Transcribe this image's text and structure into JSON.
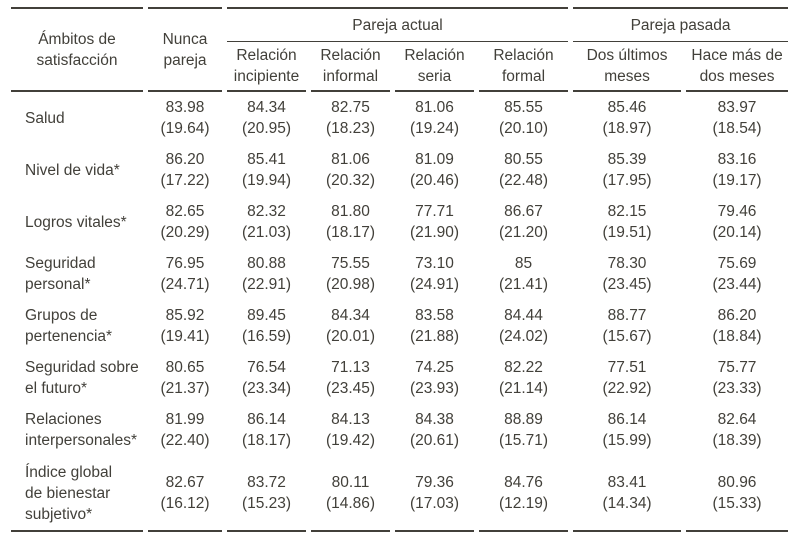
{
  "meta": {
    "text_color": "#42403a",
    "rule_color": "#42403a",
    "background_color": "#ffffff"
  },
  "header": {
    "row_label_col": "Ámbitos de\nsatisfacción",
    "never_col": "Nunca\npareja",
    "groups": [
      {
        "label": "Pareja actual",
        "columns": [
          "Relación\nincipiente",
          "Relación\ninformal",
          "Relación\nseria",
          "Relación\nformal"
        ]
      },
      {
        "label": "Pareja pasada",
        "columns": [
          "Dos últimos\nmeses",
          "Hace más de\ndos meses"
        ]
      }
    ]
  },
  "rows": [
    {
      "label": "Salud",
      "cells": [
        [
          "83.98",
          "(19.64)"
        ],
        [
          "84.34",
          "(20.95)"
        ],
        [
          "82.75",
          "(18.23)"
        ],
        [
          "81.06",
          "(19.24)"
        ],
        [
          "85.55",
          "(20.10)"
        ],
        [
          "85.46",
          "(18.97)"
        ],
        [
          "83.97",
          "(18.54)"
        ]
      ]
    },
    {
      "label": "Nivel de vida*",
      "cells": [
        [
          "86.20",
          "(17.22)"
        ],
        [
          "85.41",
          "(19.94)"
        ],
        [
          "81.06",
          "(20.32)"
        ],
        [
          "81.09",
          "(20.46)"
        ],
        [
          "80.55",
          "(22.48)"
        ],
        [
          "85.39",
          "(17.95)"
        ],
        [
          "83.16",
          "(19.17)"
        ]
      ]
    },
    {
      "label": "Logros vitales*",
      "cells": [
        [
          "82.65",
          "(20.29)"
        ],
        [
          "82.32",
          "(21.03)"
        ],
        [
          "81.80",
          "(18.17)"
        ],
        [
          "77.71",
          "(21.90)"
        ],
        [
          "86.67",
          "(21.20)"
        ],
        [
          "82.15",
          "(19.51)"
        ],
        [
          "79.46",
          "(20.14)"
        ]
      ]
    },
    {
      "label": "Seguridad\npersonal*",
      "cells": [
        [
          "76.95",
          "(24.71)"
        ],
        [
          "80.88",
          "(22.91)"
        ],
        [
          "75.55",
          "(20.98)"
        ],
        [
          "73.10",
          "(24.91)"
        ],
        [
          "85",
          "(21.41)"
        ],
        [
          "78.30",
          "(23.45)"
        ],
        [
          "75.69",
          "(23.44)"
        ]
      ]
    },
    {
      "label": "Grupos de\npertenencia*",
      "cells": [
        [
          "85.92",
          "(19.41)"
        ],
        [
          "89.45",
          "(16.59)"
        ],
        [
          "84.34",
          "(20.01)"
        ],
        [
          "83.58",
          "(21.88)"
        ],
        [
          "84.44",
          "(24.02)"
        ],
        [
          "88.77",
          "(15.67)"
        ],
        [
          "86.20",
          "(18.84)"
        ]
      ]
    },
    {
      "label": "Seguridad sobre\nel futuro*",
      "cells": [
        [
          "80.65",
          "(21.37)"
        ],
        [
          "76.54",
          "(23.34)"
        ],
        [
          "71.13",
          "(23.45)"
        ],
        [
          "74.25",
          "(23.93)"
        ],
        [
          "82.22",
          "(21.14)"
        ],
        [
          "77.51",
          "(22.92)"
        ],
        [
          "75.77",
          "(23.33)"
        ]
      ]
    },
    {
      "label": "Relaciones\ninterpersonales*",
      "cells": [
        [
          "81.99",
          "(22.40)"
        ],
        [
          "86.14",
          "(18.17)"
        ],
        [
          "84.13",
          "(19.42)"
        ],
        [
          "84.38",
          "(20.61)"
        ],
        [
          "88.89",
          "(15.71)"
        ],
        [
          "86.14",
          "(15.99)"
        ],
        [
          "82.64",
          "(18.39)"
        ]
      ]
    },
    {
      "label": "Índice global\nde bienestar\nsubjetivo*",
      "cells": [
        [
          "82.67",
          "(16.12)"
        ],
        [
          "83.72",
          "(15.23)"
        ],
        [
          "80.11",
          "(14.86)"
        ],
        [
          "79.36",
          "(17.03)"
        ],
        [
          "84.76",
          "(12.19)"
        ],
        [
          "83.41",
          "(14.34)"
        ],
        [
          "80.96",
          "(15.33)"
        ]
      ]
    }
  ]
}
